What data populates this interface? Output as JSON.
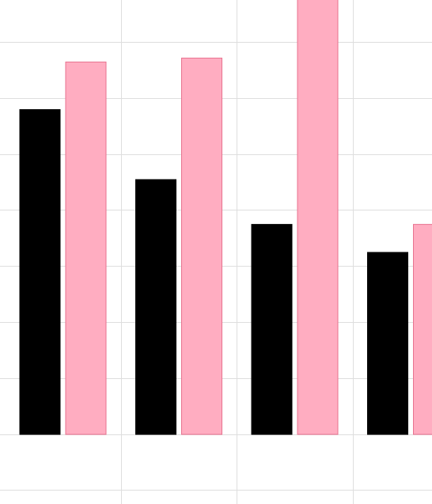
{
  "chart_data": {
    "type": "bar",
    "title": "",
    "xlabel": "",
    "ylabel": "",
    "grid": true,
    "categories": [
      "",
      "",
      "",
      ""
    ],
    "series": [
      {
        "values": [
          5.8,
          4.55,
          3.75,
          3.25
        ],
        "color": "#000000"
      },
      {
        "values": [
          6.65,
          6.72,
          7.8,
          3.75
        ],
        "color": "#ffadc1",
        "edge_color": "#e8728f"
      }
    ],
    "ylim": [
      -1.25,
      7.75
    ],
    "y_gridlines": [
      -1,
      0,
      1,
      2,
      3,
      4,
      5,
      6,
      7
    ],
    "x_gridlines": [
      0.5,
      1.5,
      2.5,
      3.5
    ]
  },
  "colors": {
    "grid": "#dedede",
    "background": "#ffffff"
  }
}
